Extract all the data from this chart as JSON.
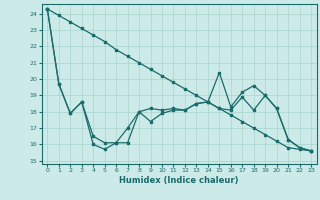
{
  "xlabel": "Humidex (Indice chaleur)",
  "background_color": "#cceae7",
  "line_color": "#1a6b6b",
  "grid_color": "#aad4d0",
  "xlim": [
    -0.5,
    23.5
  ],
  "ylim": [
    14.8,
    24.6
  ],
  "yticks": [
    15,
    16,
    17,
    18,
    19,
    20,
    21,
    22,
    23,
    24
  ],
  "xticks": [
    0,
    1,
    2,
    3,
    4,
    5,
    6,
    7,
    8,
    9,
    10,
    11,
    12,
    13,
    14,
    15,
    16,
    17,
    18,
    19,
    20,
    21,
    22,
    23
  ],
  "line1_x": [
    0,
    1,
    2,
    3,
    4,
    5,
    6,
    7,
    8,
    9,
    10,
    11,
    12,
    13,
    14,
    15,
    16,
    17,
    18,
    19,
    20,
    21,
    22,
    23
  ],
  "line1_y": [
    24.3,
    19.7,
    17.9,
    18.6,
    16.5,
    16.1,
    16.1,
    16.1,
    18.0,
    17.4,
    17.9,
    18.1,
    18.1,
    18.5,
    18.6,
    18.2,
    18.1,
    18.9,
    18.1,
    19.0,
    18.2,
    16.3,
    15.8,
    15.6
  ],
  "line2_x": [
    0,
    1,
    2,
    3,
    4,
    5,
    6,
    7,
    8,
    9,
    10,
    11,
    12,
    13,
    14,
    15,
    16,
    17,
    18,
    19,
    20,
    21,
    22,
    23
  ],
  "line2_y": [
    24.3,
    19.7,
    17.9,
    18.6,
    16.0,
    15.7,
    16.1,
    17.0,
    18.0,
    18.2,
    18.1,
    18.2,
    18.1,
    18.5,
    18.6,
    20.4,
    18.3,
    19.2,
    19.6,
    19.0,
    18.2,
    16.3,
    15.8,
    15.6
  ],
  "line3_x": [
    0,
    1,
    2,
    3,
    4,
    5,
    6,
    7,
    8,
    9,
    10,
    11,
    12,
    13,
    14,
    15,
    16,
    17,
    18,
    19,
    20,
    21,
    22,
    23
  ],
  "line3_y": [
    24.3,
    23.9,
    23.5,
    23.1,
    22.7,
    22.3,
    21.8,
    21.4,
    21.0,
    20.6,
    20.2,
    19.8,
    19.4,
    19.0,
    18.6,
    18.2,
    17.8,
    17.4,
    17.0,
    16.6,
    16.2,
    15.8,
    15.7,
    15.6
  ]
}
